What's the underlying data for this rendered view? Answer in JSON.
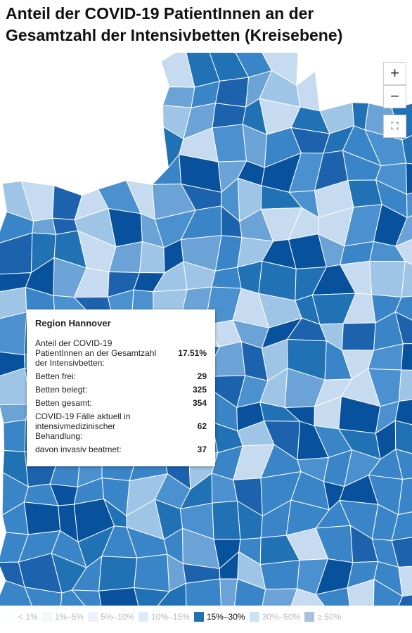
{
  "title": "Anteil der COVID-19 PatientInnen an der Gesamtzahl der Intensivbetten (Kreisebene)",
  "controls": {
    "zoom_in": "+",
    "zoom_out": "−"
  },
  "tooltip": {
    "region": "Region Hannover",
    "rows": [
      {
        "label": "Anteil der COVID-19 PatientInnen an der Gesamtzahl der Intensivbetten:",
        "value": "17.51%"
      },
      {
        "label": "Betten frei:",
        "value": "29"
      },
      {
        "label": "Betten belegt:",
        "value": "325"
      },
      {
        "label": "Betten gesamt:",
        "value": "354"
      },
      {
        "label": "COVID-19 Fälle aktuell in intensivmedizinischer Behandlung:",
        "value": "62"
      },
      {
        "label": "davon invasiv beatmet:",
        "value": "37"
      }
    ]
  },
  "legend": [
    {
      "label": "< 1%",
      "color": "#f7fbff",
      "active": false
    },
    {
      "label": "1%–5%",
      "color": "#deebf7",
      "active": false
    },
    {
      "label": "5%–10%",
      "color": "#c6dbef",
      "active": false
    },
    {
      "label": "10%–15%",
      "color": "#9ecae1",
      "active": false
    },
    {
      "label": "15%–30%",
      "color": "#2171b5",
      "active": true
    },
    {
      "label": "30%–50%",
      "color": "#6baed6",
      "active": false
    },
    {
      "label": "≥ 50%",
      "color": "#08519c",
      "active": false
    }
  ]
}
